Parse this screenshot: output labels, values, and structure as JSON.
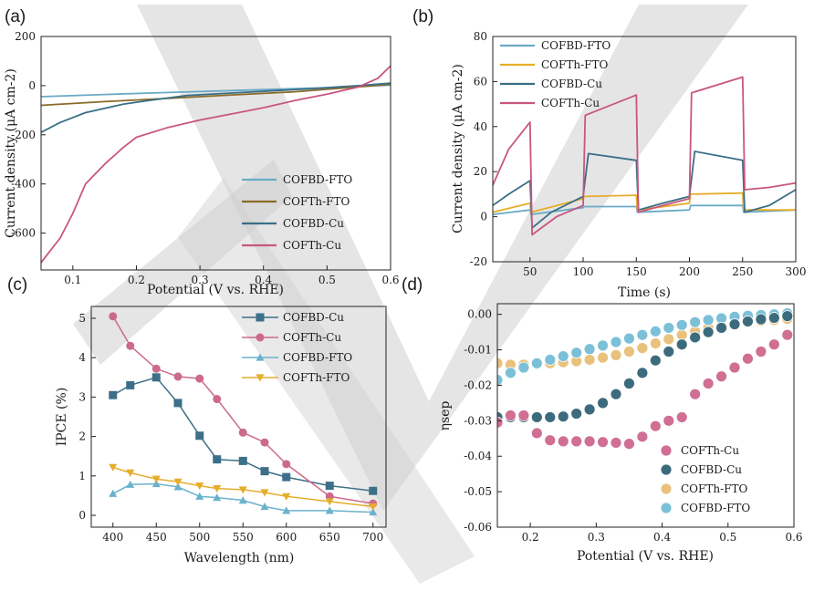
{
  "colors": {
    "cofbd_fto": "#6aaac6",
    "cofth_fto": "#8a6a2a",
    "cofbd_cu": "#3a6f86",
    "cofth_cu": "#c9567f",
    "cofbd_cu_c": "#3d6f88",
    "cofth_cu_c": "#cc6a8c",
    "cofbd_fto_c": "#6ab2cc",
    "cofth_fto_c": "#e6ad2b",
    "pts_bd_cu": "#3d6b7e",
    "pts_th_cu": "#d06e93",
    "pts_th_fto": "#e8c27d",
    "pts_bd_fto": "#7cc0d8",
    "watermark": "#c8c8c8"
  },
  "chart_data": [
    {
      "id": "a",
      "panel_label": "(a)",
      "type": "line",
      "xlabel": "Potential (V vs. RHE)",
      "ylabel": "Current density (μA cm-2)",
      "xlim": [
        0.05,
        0.6
      ],
      "ylim": [
        -750,
        200
      ],
      "xticks": [
        "0.1",
        "0.2",
        "0.3",
        "0.4",
        "0.5",
        "0.6"
      ],
      "yticks": [
        "200",
        "0",
        "-200",
        "-400",
        "-600"
      ],
      "legend_position": "bottom-right",
      "series": [
        {
          "name": "COFBD-FTO",
          "x": [
            0.05,
            0.15,
            0.25,
            0.35,
            0.45,
            0.5,
            0.55,
            0.6
          ],
          "y": [
            -45,
            -36,
            -28,
            -20,
            -12,
            -8,
            -3,
            2
          ]
        },
        {
          "name": "COFTh-FTO",
          "x": [
            0.05,
            0.15,
            0.25,
            0.35,
            0.45,
            0.5,
            0.55,
            0.6
          ],
          "y": [
            -80,
            -65,
            -52,
            -38,
            -25,
            -15,
            -5,
            5
          ]
        },
        {
          "name": "COFBD-Cu",
          "x": [
            0.05,
            0.08,
            0.12,
            0.18,
            0.22,
            0.28,
            0.35,
            0.42,
            0.48,
            0.52,
            0.55,
            0.6
          ],
          "y": [
            -190,
            -150,
            -110,
            -75,
            -60,
            -40,
            -30,
            -20,
            -12,
            -5,
            0,
            10
          ]
        },
        {
          "name": "COFTh-Cu",
          "x": [
            0.05,
            0.08,
            0.1,
            0.12,
            0.15,
            0.18,
            0.2,
            0.25,
            0.3,
            0.35,
            0.4,
            0.45,
            0.5,
            0.55,
            0.58,
            0.6
          ],
          "y": [
            -720,
            -620,
            -520,
            -400,
            -320,
            -250,
            -210,
            -170,
            -140,
            -115,
            -90,
            -60,
            -35,
            -5,
            30,
            80
          ]
        }
      ]
    },
    {
      "id": "b",
      "panel_label": "(b)",
      "type": "line",
      "xlabel": "Time (s)",
      "ylabel": "Current density (μA cm-2)",
      "xlim": [
        15,
        300
      ],
      "ylim": [
        -20,
        80
      ],
      "xticks": [
        "50",
        "100",
        "150",
        "200",
        "250",
        "300"
      ],
      "yticks": [
        "80",
        "60",
        "40",
        "20",
        "0",
        "-20"
      ],
      "legend_position": "top-left",
      "series": [
        {
          "name": "COFBD-FTO",
          "x": [
            15,
            50,
            51,
            100,
            101,
            150,
            151,
            200,
            201,
            250,
            251,
            300
          ],
          "y": [
            1,
            3,
            1,
            4,
            4.5,
            4.5,
            2,
            3,
            5,
            5,
            2,
            3
          ]
        },
        {
          "name": "COFTh-FTO",
          "x": [
            15,
            50,
            51,
            100,
            101,
            150,
            151,
            200,
            201,
            250,
            251,
            300
          ],
          "y": [
            2,
            6,
            2,
            8,
            9,
            9.5,
            3,
            6,
            10,
            10.5,
            3,
            3
          ]
        },
        {
          "name": "COFBD-Cu",
          "x": [
            15,
            30,
            50,
            52,
            70,
            100,
            105,
            150,
            152,
            175,
            200,
            205,
            250,
            252,
            275,
            300
          ],
          "y": [
            5,
            10,
            16,
            -5,
            2,
            9,
            28,
            25,
            3,
            6,
            9,
            29,
            25,
            2,
            5,
            12
          ]
        },
        {
          "name": "COFTh-Cu",
          "x": [
            15,
            30,
            50,
            52,
            75,
            100,
            102,
            150,
            152,
            175,
            200,
            202,
            250,
            252,
            275,
            300
          ],
          "y": [
            14,
            30,
            42,
            -8,
            0,
            5,
            45,
            54,
            2,
            5,
            8,
            55,
            62,
            12,
            13,
            15
          ]
        }
      ]
    },
    {
      "id": "c",
      "panel_label": "(c)",
      "type": "line",
      "xlabel": "Wavelength (nm)",
      "ylabel": "IPCE (%)",
      "xlim": [
        375,
        715
      ],
      "ylim": [
        -0.3,
        5.3
      ],
      "xticks": [
        "400",
        "450",
        "500",
        "550",
        "600",
        "650",
        "700"
      ],
      "yticks": [
        "0",
        "1",
        "2",
        "3",
        "4",
        "5"
      ],
      "legend_position": "top-right",
      "x": [
        400,
        420,
        450,
        475,
        500,
        520,
        550,
        575,
        600,
        650,
        700
      ],
      "series": [
        {
          "name": "COFBD-Cu",
          "marker": "square",
          "y": [
            3.05,
            3.3,
            3.5,
            2.85,
            2.02,
            1.42,
            1.38,
            1.12,
            0.97,
            0.75,
            0.62
          ]
        },
        {
          "name": "COFTh-Cu",
          "marker": "circle",
          "y": [
            5.05,
            4.3,
            3.72,
            3.52,
            3.47,
            2.95,
            2.1,
            1.85,
            1.3,
            0.48,
            0.3
          ]
        },
        {
          "name": "COFBD-FTO",
          "marker": "triangle-up",
          "y": [
            0.55,
            0.78,
            0.8,
            0.72,
            0.48,
            0.45,
            0.38,
            0.22,
            0.12,
            0.12,
            0.08
          ]
        },
        {
          "name": "COFTh-FTO",
          "marker": "triangle-down",
          "y": [
            1.22,
            1.08,
            0.92,
            0.85,
            0.75,
            0.68,
            0.65,
            0.58,
            0.48,
            0.35,
            0.22
          ]
        }
      ]
    },
    {
      "id": "d",
      "panel_label": "(d)",
      "type": "scatter",
      "xlabel": "Potential (V vs. RHE)",
      "ylabel": "ηsep",
      "xlim": [
        0.15,
        0.6
      ],
      "ylim": [
        -0.06,
        0.003
      ],
      "xticks": [
        "0.2",
        "0.3",
        "0.4",
        "0.5",
        "0.6"
      ],
      "yticks": [
        "0.00",
        "-0.01",
        "-0.02",
        "-0.03",
        "-0.04",
        "-0.05",
        "-0.06"
      ],
      "legend_position": "bottom-right",
      "series": [
        {
          "name": "COFTh-Cu",
          "x": [
            0.15,
            0.17,
            0.19,
            0.21,
            0.23,
            0.25,
            0.27,
            0.29,
            0.31,
            0.33,
            0.35,
            0.37,
            0.39,
            0.41,
            0.43,
            0.45,
            0.47,
            0.49,
            0.51,
            0.53,
            0.55,
            0.57,
            0.59
          ],
          "y": [
            -0.0305,
            -0.0285,
            -0.0285,
            -0.0335,
            -0.0355,
            -0.0358,
            -0.0358,
            -0.0358,
            -0.036,
            -0.0362,
            -0.0365,
            -0.0345,
            -0.0315,
            -0.03,
            -0.029,
            -0.0225,
            -0.0195,
            -0.0175,
            -0.015,
            -0.0125,
            -0.0105,
            -0.0085,
            -0.0058
          ]
        },
        {
          "name": "COFBD-Cu",
          "x": [
            0.15,
            0.17,
            0.19,
            0.21,
            0.23,
            0.25,
            0.27,
            0.29,
            0.31,
            0.33,
            0.35,
            0.37,
            0.39,
            0.41,
            0.43,
            0.45,
            0.47,
            0.49,
            0.51,
            0.53,
            0.55,
            0.57,
            0.59
          ],
          "y": [
            -0.029,
            -0.029,
            -0.029,
            -0.029,
            -0.029,
            -0.0288,
            -0.028,
            -0.0268,
            -0.025,
            -0.0225,
            -0.0195,
            -0.0165,
            -0.013,
            -0.0105,
            -0.0085,
            -0.0065,
            -0.005,
            -0.0038,
            -0.0028,
            -0.002,
            -0.0014,
            -0.001,
            -0.0005
          ]
        },
        {
          "name": "COFTh-FTO",
          "x": [
            0.15,
            0.17,
            0.19,
            0.21,
            0.23,
            0.25,
            0.27,
            0.29,
            0.31,
            0.33,
            0.35,
            0.37,
            0.39,
            0.41,
            0.43,
            0.45,
            0.47,
            0.49,
            0.51,
            0.53,
            0.55,
            0.57,
            0.59
          ],
          "y": [
            -0.0138,
            -0.0142,
            -0.0142,
            -0.014,
            -0.0138,
            -0.0135,
            -0.0132,
            -0.0128,
            -0.0122,
            -0.0115,
            -0.0105,
            -0.0095,
            -0.0082,
            -0.007,
            -0.0058,
            -0.0048,
            -0.0038,
            -0.0032,
            -0.0027,
            -0.0022,
            -0.0018,
            -0.0016,
            -0.0013
          ]
        },
        {
          "name": "COFBD-FTO",
          "x": [
            0.15,
            0.17,
            0.19,
            0.21,
            0.23,
            0.25,
            0.27,
            0.29,
            0.31,
            0.33,
            0.35,
            0.37,
            0.39,
            0.41,
            0.43,
            0.45,
            0.47,
            0.49,
            0.51,
            0.53,
            0.55,
            0.57,
            0.59
          ],
          "y": [
            -0.0185,
            -0.0165,
            -0.015,
            -0.0138,
            -0.0128,
            -0.0118,
            -0.0108,
            -0.0098,
            -0.0088,
            -0.0078,
            -0.0068,
            -0.0058,
            -0.0048,
            -0.0038,
            -0.003,
            -0.0022,
            -0.0016,
            -0.0011,
            -0.0007,
            -0.0004,
            -0.0002,
            0.0,
            0.0003
          ]
        }
      ]
    }
  ]
}
